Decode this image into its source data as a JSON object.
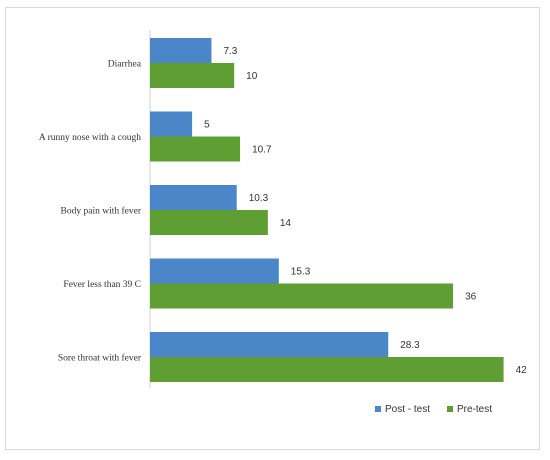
{
  "chart_data": {
    "type": "bar",
    "orientation": "horizontal",
    "categories": [
      "Diarrhea",
      "A runny nose with a cough",
      "Body pain with fever",
      "Fever less than 39 C",
      "Sore throat with fever"
    ],
    "series": [
      {
        "name": "Post - test",
        "values": [
          7.3,
          5,
          10.3,
          15.3,
          28.3
        ],
        "color": "#4a86c8"
      },
      {
        "name": "Pre-test",
        "values": [
          10,
          10.7,
          14,
          36,
          42
        ],
        "color": "#5e9e33"
      }
    ],
    "value_labels": {
      "Post - test": [
        "7.3",
        "5",
        "10.3",
        "15.3",
        "28.3"
      ],
      "Pre-test": [
        "10",
        "10.7",
        "14",
        "36",
        "42"
      ]
    },
    "xlim": [
      0,
      43
    ],
    "grid": false,
    "legend_position": "bottom-right"
  }
}
